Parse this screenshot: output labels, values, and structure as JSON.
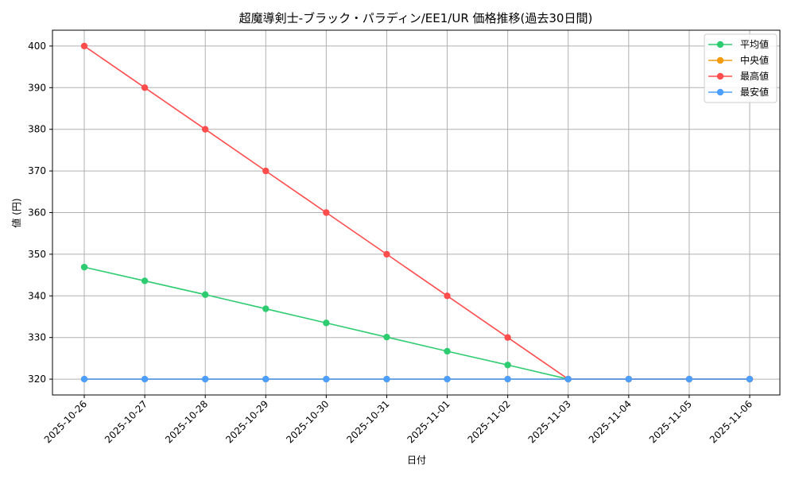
{
  "chart_data": {
    "type": "line",
    "title": "超魔導剣士-ブラック・パラディン/EE1/UR 価格推移(過去30日間)",
    "xlabel": "日付",
    "ylabel": "値 (円)",
    "ylim": [
      316.2,
      403.8
    ],
    "yticks": [
      320,
      330,
      340,
      350,
      360,
      370,
      380,
      390,
      400
    ],
    "grid": true,
    "legend_position": "top-right",
    "x": [
      "2025-10-26",
      "2025-10-27",
      "2025-10-28",
      "2025-10-29",
      "2025-10-30",
      "2025-10-31",
      "2025-11-01",
      "2025-11-02",
      "2025-11-03",
      "2025-11-04",
      "2025-11-05",
      "2025-11-06"
    ],
    "series": [
      {
        "name": "平均値",
        "color": "#2ecc71",
        "values": [
          346.9,
          343.6,
          340.3,
          336.9,
          333.5,
          330.1,
          326.7,
          323.4,
          320,
          320,
          320,
          320
        ]
      },
      {
        "name": "中央値",
        "color": "#f39c12",
        "values": [
          320,
          320,
          320,
          320,
          320,
          320,
          320,
          320,
          320,
          320,
          320,
          320
        ]
      },
      {
        "name": "最高値",
        "color": "#ff4d4d",
        "values": [
          400,
          390,
          380,
          370,
          360,
          350,
          340,
          330,
          320,
          320,
          320,
          320
        ]
      },
      {
        "name": "最安値",
        "color": "#4d9fff",
        "values": [
          320,
          320,
          320,
          320,
          320,
          320,
          320,
          320,
          320,
          320,
          320,
          320
        ]
      }
    ]
  }
}
